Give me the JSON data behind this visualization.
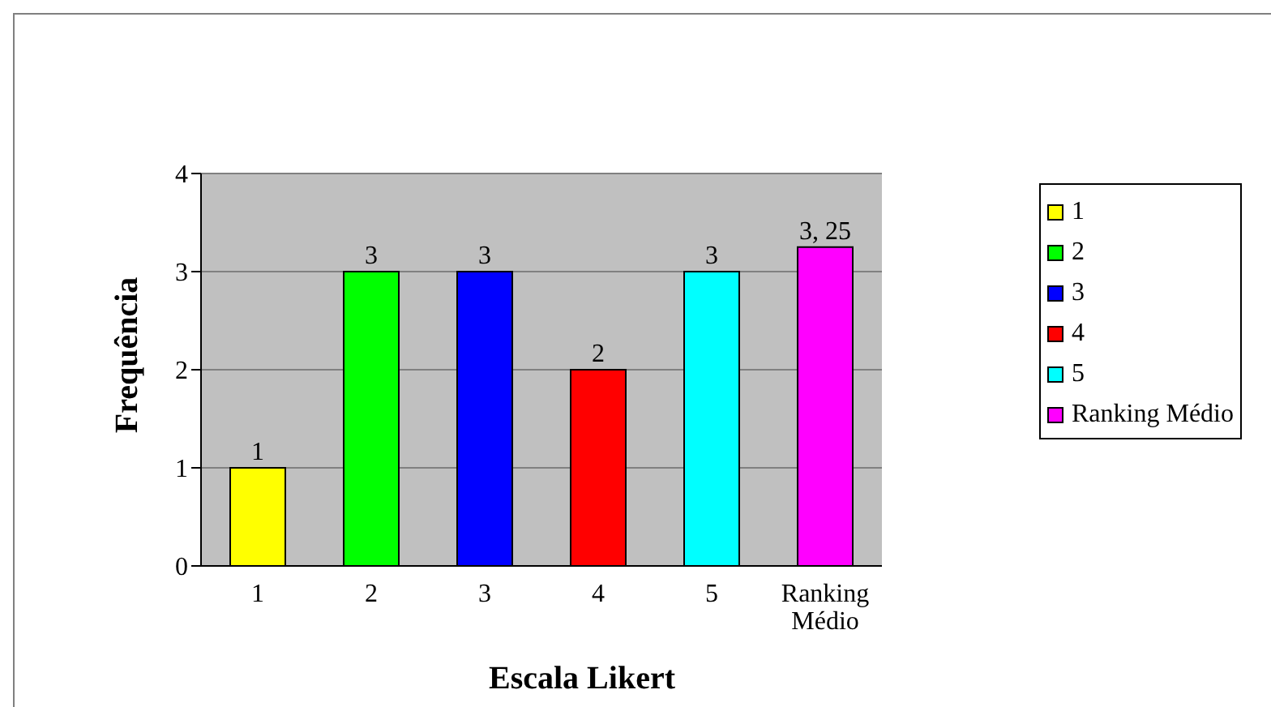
{
  "chart_data": {
    "type": "bar",
    "xlabel": "Escala Likert",
    "ylabel": "Frequência",
    "categories": [
      "1",
      "2",
      "3",
      "4",
      "5",
      "Ranking Médio"
    ],
    "series": [
      {
        "name": "1",
        "color": "#ffff00",
        "values": [
          1,
          null,
          null,
          null,
          null,
          null
        ],
        "value_labels": [
          "1",
          null,
          null,
          null,
          null,
          null
        ]
      },
      {
        "name": "2",
        "color": "#00ff00",
        "values": [
          null,
          3,
          null,
          null,
          null,
          null
        ],
        "value_labels": [
          null,
          "3",
          null,
          null,
          null,
          null
        ]
      },
      {
        "name": "3",
        "color": "#0000ff",
        "values": [
          null,
          null,
          3,
          null,
          null,
          null
        ],
        "value_labels": [
          null,
          null,
          "3",
          null,
          null,
          null
        ]
      },
      {
        "name": "4",
        "color": "#ff0000",
        "values": [
          null,
          null,
          null,
          2,
          null,
          null
        ],
        "value_labels": [
          null,
          null,
          null,
          "2",
          null,
          null
        ]
      },
      {
        "name": "5",
        "color": "#00ffff",
        "values": [
          null,
          null,
          null,
          null,
          3,
          null
        ],
        "value_labels": [
          null,
          null,
          null,
          null,
          "3",
          null
        ]
      },
      {
        "name": "Ranking Médio",
        "color": "#ff00ff",
        "values": [
          null,
          null,
          null,
          null,
          null,
          3.25
        ],
        "value_labels": [
          null,
          null,
          null,
          null,
          null,
          "3, 25"
        ]
      }
    ],
    "stacked": true,
    "ylim": [
      0,
      4
    ],
    "yticks": [
      0,
      1,
      2,
      3,
      4
    ],
    "grid": "y",
    "legend": "right"
  }
}
